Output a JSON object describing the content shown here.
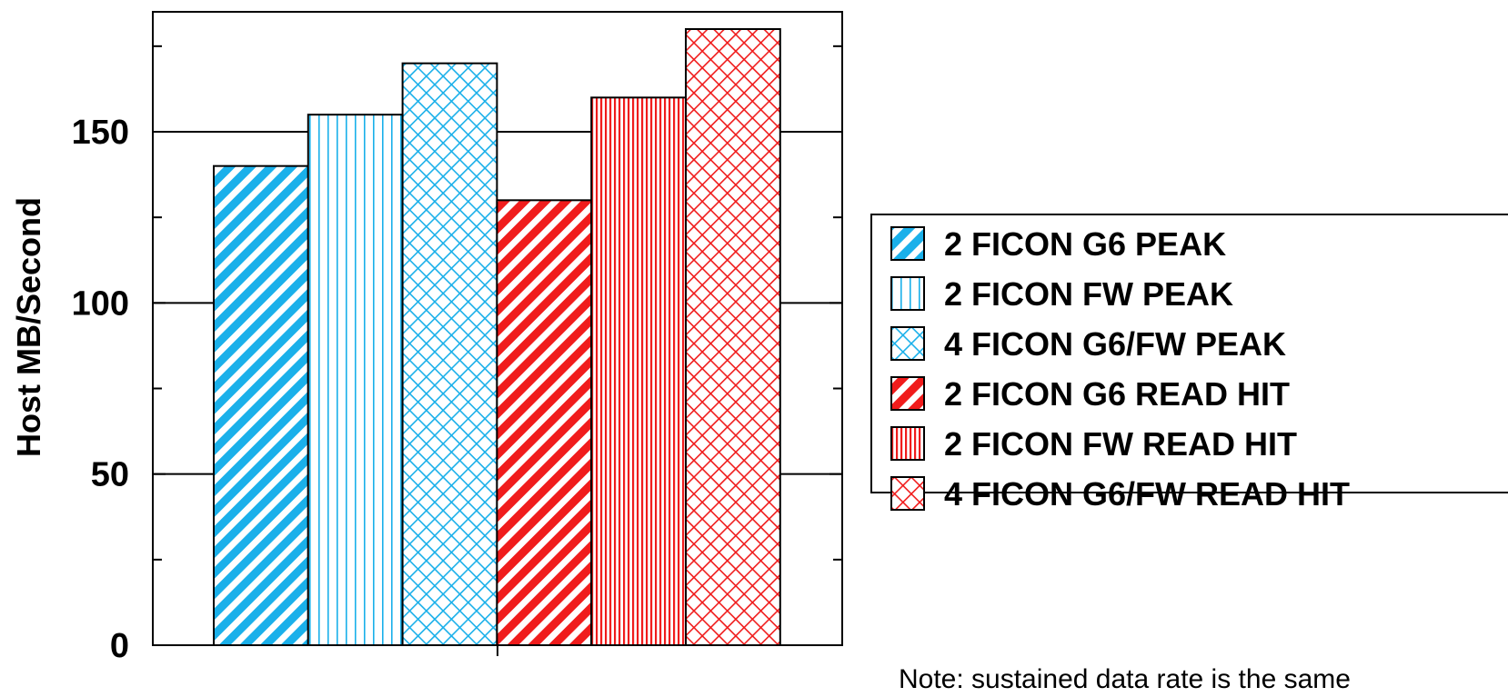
{
  "chart_data": {
    "type": "bar",
    "ylabel": "Host MB/Second",
    "ylim": [
      0,
      185
    ],
    "yticks": [
      0,
      50,
      100,
      150
    ],
    "grid": "horizontal major",
    "legend_position": "right",
    "categories": [
      "",
      ""
    ],
    "series": [
      {
        "name": "2 FICON G6 PEAK",
        "value": 140,
        "color": "#1ab0ea",
        "pattern": "diagonal-thick"
      },
      {
        "name": "2 FICON FW PEAK",
        "value": 155,
        "color": "#1ab0ea",
        "pattern": "vertical-wide"
      },
      {
        "name": "4 FICON G6/FW PEAK",
        "value": 170,
        "color": "#1ab0ea",
        "pattern": "crosshatch"
      },
      {
        "name": "2 FICON G6 READ HIT",
        "value": 130,
        "color": "#f01c1c",
        "pattern": "diagonal-thick"
      },
      {
        "name": "2 FICON FW READ HIT",
        "value": 160,
        "color": "#f01c1c",
        "pattern": "vertical-dense"
      },
      {
        "name": "4 FICON G6/FW READ HIT",
        "value": 180,
        "color": "#f01c1c",
        "pattern": "crosshatch"
      }
    ],
    "note": "Note: sustained data rate is the same"
  }
}
